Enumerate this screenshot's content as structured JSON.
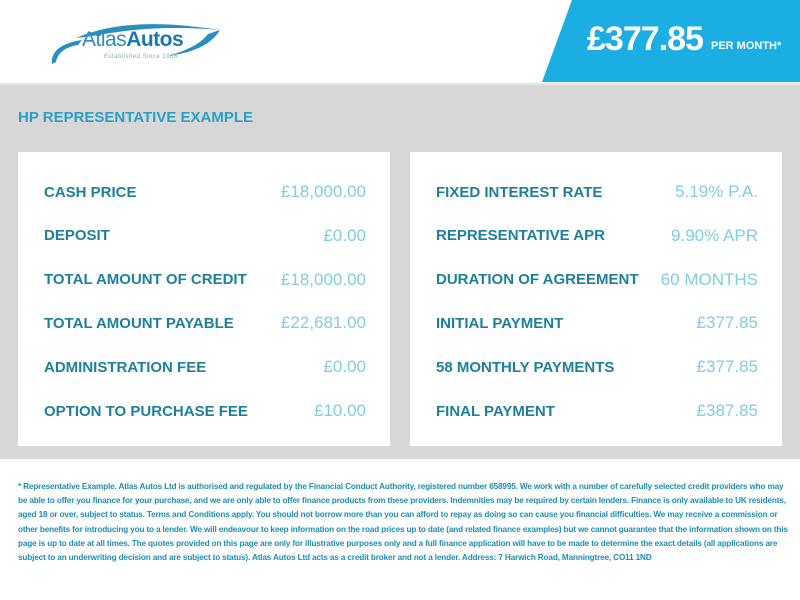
{
  "brand": {
    "name_light": "Atlas",
    "name_bold": "Autos",
    "tagline": "Established Since 1986",
    "color": "#1aaee3"
  },
  "header": {
    "price": "£377.85",
    "per_month": "PER MONTH*"
  },
  "section_title": "HP REPRESENTATIVE EXAMPLE",
  "left": [
    {
      "label": "CASH PRICE",
      "value": "£18,000.00"
    },
    {
      "label": "DEPOSIT",
      "value": "£0.00"
    },
    {
      "label": "TOTAL AMOUNT OF CREDIT",
      "value": "£18,000.00"
    },
    {
      "label": "TOTAL AMOUNT PAYABLE",
      "value": "£22,681.00"
    },
    {
      "label": "ADMINISTRATION FEE",
      "value": "£0.00"
    },
    {
      "label": "OPTION TO PURCHASE FEE",
      "value": "£10.00"
    }
  ],
  "right": [
    {
      "label": "FIXED INTEREST RATE",
      "value": "5.19% P.A."
    },
    {
      "label": "REPRESENTATIVE APR",
      "value": "9.90% APR"
    },
    {
      "label": "DURATION OF AGREEMENT",
      "value": "60 MONTHS"
    },
    {
      "label": "INITIAL PAYMENT",
      "value": "£377.85"
    },
    {
      "label": "58 MONTHLY PAYMENTS",
      "value": "£377.85"
    },
    {
      "label": "FINAL PAYMENT",
      "value": "£387.85"
    }
  ],
  "disclaimer": "* Representative Example. Atlas Autos Ltd is authorised and regulated by the Financial Conduct Authority, registered number 658995. We work with a number of carefully selected credit providers who may be able to offer you finance for your purchase, and we are only able to offer finance products from these providers. Indemnities may be required by certain lenders. Finance is only available to UK residents, aged 18 or over, subject to status. Terms and Conditions apply. You should not borrow more than you can afford to repay as doing so can cause you financial difficulties. We may receive a commission or other benefits for introducing you to a lender. We will endeavour to keep information on the road prices up to date (and related finance examples) but we cannot guarantee that the information shown on this page is up to date at all times. The quotes provided on this page are only for illustrative purposes only and a full finance application will have to be made to determine the exact details (all applications are subject to an underwriting decision and are subject to status). Atlas Autos Ltd acts as a credit broker and not a lender. Address: 7 Harwich Road, Manningtree, CO11 1ND"
}
